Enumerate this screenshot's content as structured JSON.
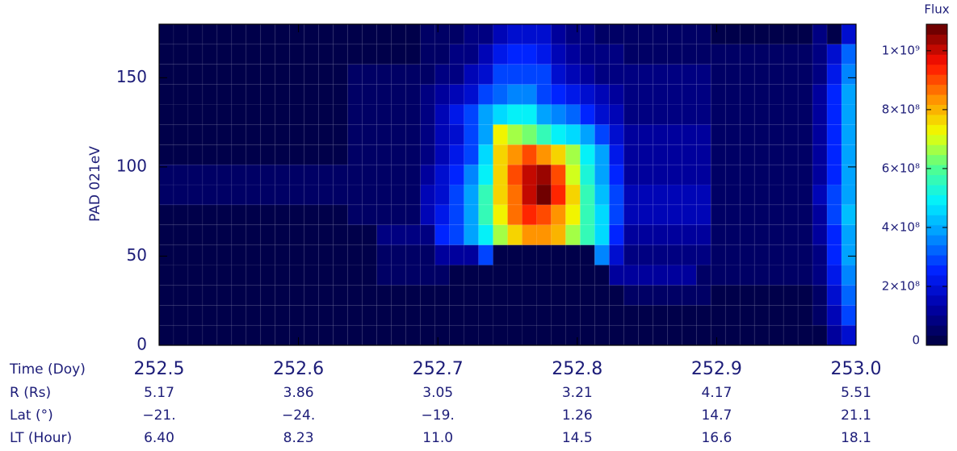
{
  "chart_data": {
    "type": "heatmap",
    "ylabel": "PAD 021eV",
    "xlabel": "Time (Doy)",
    "xlim": [
      252.5,
      253.0
    ],
    "xticks": [
      252.5,
      252.6,
      252.7,
      252.8,
      252.9,
      {
        "value": 253,
        "label": "253.0"
      }
    ],
    "ylim": [
      0,
      180
    ],
    "yticks": [
      0,
      50,
      100,
      150
    ],
    "colorbar": {
      "label": "Flux",
      "lim": [
        0,
        1090000000.0
      ],
      "ticks": [
        0,
        {
          "value": 200000000.0,
          "label": "2×10⁸"
        },
        {
          "value": 400000000.0,
          "label": "4×10⁸"
        },
        {
          "value": 600000000.0,
          "label": "6×10⁸"
        },
        {
          "value": 800000000.0,
          "label": "8×10⁸"
        },
        {
          "value": 1000000000.0,
          "label": "1×10⁹"
        }
      ],
      "colormap": [
        "#00004a",
        "#0000a8",
        "#0020ff",
        "#0090ff",
        "#00f0ff",
        "#50ff90",
        "#f0ff00",
        "#ff9000",
        "#ff1000",
        "#700000"
      ]
    },
    "ephemeris": [
      {
        "label": "R (Rs)",
        "values": [
          "5.17",
          "3.86",
          "3.05",
          "3.21",
          "4.17",
          "5.51"
        ]
      },
      {
        "label": "Lat (°)",
        "values": [
          "−21.",
          "−24.",
          "−19.",
          "1.26",
          "14.7",
          "21.1"
        ]
      },
      {
        "label": "LT (Hour)",
        "values": [
          "6.40",
          "8.23",
          "11.0",
          "14.5",
          "16.6",
          "18.1"
        ]
      }
    ],
    "z": [
      [
        20000000.0,
        20000000.0,
        20000000.0,
        20000000.0,
        20000000.0,
        20000000.0,
        20000000.0,
        20000000.0,
        20000000.0,
        20000000.0,
        20000000.0,
        20000000.0,
        20000000.0,
        20000000.0,
        20000000.0,
        20000000.0,
        20000000.0,
        20000000.0,
        20000000.0,
        20000000.0,
        20000000.0,
        20000000.0,
        10000000.0,
        10000000.0,
        10000000.0,
        10000000.0,
        10000000.0,
        10000000.0,
        10000000.0,
        10000000.0,
        10000000.0,
        10000000.0,
        10000000.0,
        10000000.0,
        10000000.0,
        10000000.0,
        10000000.0,
        10000000.0,
        10000000.0,
        10000000.0,
        10000000.0,
        20000000.0,
        20000000.0,
        20000000.0,
        20000000.0,
        10000000.0,
        120000000.0,
        180000000.0
      ],
      [
        20000000.0,
        20000000.0,
        20000000.0,
        20000000.0,
        20000000.0,
        20000000.0,
        20000000.0,
        20000000.0,
        20000000.0,
        20000000.0,
        20000000.0,
        20000000.0,
        20000000.0,
        20000000.0,
        20000000.0,
        20000000.0,
        20000000.0,
        20000000.0,
        20000000.0,
        10000000.0,
        10000000.0,
        10000000.0,
        10000000.0,
        10000000.0,
        10000000.0,
        10000000.0,
        10000000.0,
        10000000.0,
        10000000.0,
        10000000.0,
        10000000.0,
        10000000.0,
        10000000.0,
        10000000.0,
        10000000.0,
        10000000.0,
        10000000.0,
        10000000.0,
        10000000.0,
        10000000.0,
        10000000.0,
        30000000.0,
        30000000.0,
        30000000.0,
        30000000.0,
        50000000.0,
        150000000.0,
        300000000.0
      ],
      [
        20000000.0,
        20000000.0,
        20000000.0,
        20000000.0,
        20000000.0,
        20000000.0,
        20000000.0,
        20000000.0,
        20000000.0,
        20000000.0,
        20000000.0,
        20000000.0,
        20000000.0,
        20000000.0,
        20000000.0,
        20000000.0,
        20000000.0,
        20000000.0,
        10000000.0,
        10000000.0,
        10000000.0,
        10000000.0,
        10000000.0,
        10000000.0,
        10000000.0,
        10000000.0,
        10000000.0,
        10000000.0,
        10000000.0,
        10000000.0,
        10000000.0,
        10000000.0,
        60000000.0,
        60000000.0,
        60000000.0,
        60000000.0,
        60000000.0,
        60000000.0,
        30000000.0,
        30000000.0,
        30000000.0,
        30000000.0,
        30000000.0,
        30000000.0,
        30000000.0,
        60000000.0,
        200000000.0,
        330000000.0
      ],
      [
        20000000.0,
        20000000.0,
        20000000.0,
        20000000.0,
        20000000.0,
        20000000.0,
        20000000.0,
        20000000.0,
        20000000.0,
        20000000.0,
        20000000.0,
        20000000.0,
        20000000.0,
        20000000.0,
        20000000.0,
        40000000.0,
        40000000.0,
        40000000.0,
        40000000.0,
        40000000.0,
        10000000.0,
        10000000.0,
        10000000.0,
        10000000.0,
        10000000.0,
        10000000.0,
        10000000.0,
        10000000.0,
        10000000.0,
        10000000.0,
        10000000.0,
        120000000.0,
        120000000.0,
        120000000.0,
        120000000.0,
        120000000.0,
        120000000.0,
        40000000.0,
        40000000.0,
        40000000.0,
        40000000.0,
        40000000.0,
        40000000.0,
        40000000.0,
        40000000.0,
        80000000.0,
        220000000.0,
        350000000.0
      ],
      [
        30000000.0,
        30000000.0,
        30000000.0,
        30000000.0,
        30000000.0,
        30000000.0,
        30000000.0,
        30000000.0,
        30000000.0,
        30000000.0,
        30000000.0,
        30000000.0,
        30000000.0,
        30000000.0,
        30000000.0,
        50000000.0,
        50000000.0,
        50000000.0,
        50000000.0,
        120000000.0,
        120000000.0,
        120000000.0,
        300000000.0,
        10000000.0,
        10000000.0,
        10000000.0,
        10000000.0,
        10000000.0,
        10000000.0,
        10000000.0,
        350000000.0,
        200000000.0,
        100000000.0,
        100000000.0,
        100000000.0,
        100000000.0,
        100000000.0,
        100000000.0,
        40000000.0,
        40000000.0,
        40000000.0,
        40000000.0,
        40000000.0,
        40000000.0,
        40000000.0,
        100000000.0,
        250000000.0,
        380000000.0
      ],
      [
        30000000.0,
        30000000.0,
        30000000.0,
        30000000.0,
        30000000.0,
        30000000.0,
        30000000.0,
        30000000.0,
        30000000.0,
        30000000.0,
        30000000.0,
        30000000.0,
        30000000.0,
        30000000.0,
        30000000.0,
        80000000.0,
        80000000.0,
        80000000.0,
        80000000.0,
        250000000.0,
        300000000.0,
        380000000.0,
        480000000.0,
        650000000.0,
        780000000.0,
        850000000.0,
        820000000.0,
        800000000.0,
        680000000.0,
        550000000.0,
        450000000.0,
        250000000.0,
        120000000.0,
        120000000.0,
        120000000.0,
        120000000.0,
        120000000.0,
        120000000.0,
        50000000.0,
        50000000.0,
        50000000.0,
        50000000.0,
        50000000.0,
        50000000.0,
        50000000.0,
        120000000.0,
        250000000.0,
        400000000.0
      ],
      [
        30000000.0,
        30000000.0,
        30000000.0,
        30000000.0,
        30000000.0,
        30000000.0,
        30000000.0,
        30000000.0,
        30000000.0,
        30000000.0,
        30000000.0,
        30000000.0,
        30000000.0,
        60000000.0,
        60000000.0,
        60000000.0,
        60000000.0,
        60000000.0,
        150000000.0,
        220000000.0,
        300000000.0,
        400000000.0,
        550000000.0,
        720000000.0,
        880000000.0,
        920000000.0,
        900000000.0,
        850000000.0,
        720000000.0,
        550000000.0,
        450000000.0,
        300000000.0,
        150000000.0,
        150000000.0,
        150000000.0,
        150000000.0,
        150000000.0,
        150000000.0,
        60000000.0,
        60000000.0,
        60000000.0,
        60000000.0,
        60000000.0,
        60000000.0,
        60000000.0,
        120000000.0,
        280000000.0,
        420000000.0
      ],
      [
        40000000.0,
        40000000.0,
        40000000.0,
        40000000.0,
        40000000.0,
        40000000.0,
        40000000.0,
        40000000.0,
        40000000.0,
        40000000.0,
        40000000.0,
        40000000.0,
        40000000.0,
        60000000.0,
        60000000.0,
        60000000.0,
        60000000.0,
        60000000.0,
        140000000.0,
        200000000.0,
        300000000.0,
        380000000.0,
        550000000.0,
        750000000.0,
        880000000.0,
        1000000000.0,
        1060000000.0,
        950000000.0,
        750000000.0,
        550000000.0,
        420000000.0,
        280000000.0,
        140000000.0,
        140000000.0,
        140000000.0,
        140000000.0,
        140000000.0,
        140000000.0,
        50000000.0,
        50000000.0,
        50000000.0,
        50000000.0,
        50000000.0,
        50000000.0,
        50000000.0,
        140000000.0,
        280000000.0,
        400000000.0
      ],
      [
        40000000.0,
        40000000.0,
        40000000.0,
        40000000.0,
        40000000.0,
        40000000.0,
        40000000.0,
        40000000.0,
        40000000.0,
        40000000.0,
        40000000.0,
        40000000.0,
        40000000.0,
        60000000.0,
        60000000.0,
        60000000.0,
        60000000.0,
        60000000.0,
        120000000.0,
        180000000.0,
        260000000.0,
        350000000.0,
        500000000.0,
        750000000.0,
        900000000.0,
        1020000000.0,
        1040000000.0,
        900000000.0,
        700000000.0,
        520000000.0,
        400000000.0,
        250000000.0,
        130000000.0,
        130000000.0,
        130000000.0,
        130000000.0,
        130000000.0,
        130000000.0,
        50000000.0,
        50000000.0,
        50000000.0,
        50000000.0,
        50000000.0,
        50000000.0,
        50000000.0,
        130000000.0,
        270000000.0,
        400000000.0
      ],
      [
        30000000.0,
        30000000.0,
        30000000.0,
        30000000.0,
        30000000.0,
        30000000.0,
        30000000.0,
        30000000.0,
        30000000.0,
        30000000.0,
        30000000.0,
        30000000.0,
        30000000.0,
        50000000.0,
        50000000.0,
        50000000.0,
        50000000.0,
        50000000.0,
        100000000.0,
        150000000.0,
        220000000.0,
        300000000.0,
        450000000.0,
        750000000.0,
        850000000.0,
        900000000.0,
        850000000.0,
        780000000.0,
        650000000.0,
        500000000.0,
        380000000.0,
        220000000.0,
        120000000.0,
        120000000.0,
        120000000.0,
        120000000.0,
        120000000.0,
        120000000.0,
        50000000.0,
        50000000.0,
        50000000.0,
        50000000.0,
        50000000.0,
        50000000.0,
        50000000.0,
        120000000.0,
        260000000.0,
        400000000.0
      ],
      [
        30000000.0,
        30000000.0,
        30000000.0,
        30000000.0,
        30000000.0,
        30000000.0,
        30000000.0,
        30000000.0,
        30000000.0,
        30000000.0,
        30000000.0,
        30000000.0,
        30000000.0,
        50000000.0,
        50000000.0,
        50000000.0,
        50000000.0,
        50000000.0,
        90000000.0,
        140000000.0,
        200000000.0,
        280000000.0,
        400000000.0,
        720000000.0,
        650000000.0,
        620000000.0,
        550000000.0,
        500000000.0,
        450000000.0,
        400000000.0,
        300000000.0,
        200000000.0,
        110000000.0,
        110000000.0,
        110000000.0,
        110000000.0,
        110000000.0,
        110000000.0,
        50000000.0,
        50000000.0,
        50000000.0,
        50000000.0,
        50000000.0,
        50000000.0,
        50000000.0,
        120000000.0,
        260000000.0,
        380000000.0
      ],
      [
        30000000.0,
        30000000.0,
        30000000.0,
        30000000.0,
        30000000.0,
        30000000.0,
        30000000.0,
        30000000.0,
        30000000.0,
        30000000.0,
        30000000.0,
        30000000.0,
        30000000.0,
        40000000.0,
        40000000.0,
        40000000.0,
        40000000.0,
        40000000.0,
        80000000.0,
        140000000.0,
        220000000.0,
        300000000.0,
        380000000.0,
        450000000.0,
        480000000.0,
        480000000.0,
        400000000.0,
        350000000.0,
        320000000.0,
        250000000.0,
        200000000.0,
        150000000.0,
        100000000.0,
        100000000.0,
        100000000.0,
        100000000.0,
        100000000.0,
        100000000.0,
        50000000.0,
        50000000.0,
        50000000.0,
        50000000.0,
        50000000.0,
        50000000.0,
        50000000.0,
        120000000.0,
        250000000.0,
        380000000.0
      ],
      [
        30000000.0,
        30000000.0,
        30000000.0,
        30000000.0,
        30000000.0,
        30000000.0,
        30000000.0,
        30000000.0,
        30000000.0,
        30000000.0,
        30000000.0,
        30000000.0,
        30000000.0,
        40000000.0,
        40000000.0,
        40000000.0,
        40000000.0,
        40000000.0,
        70000000.0,
        120000000.0,
        150000000.0,
        200000000.0,
        280000000.0,
        320000000.0,
        350000000.0,
        350000000.0,
        300000000.0,
        250000000.0,
        220000000.0,
        180000000.0,
        140000000.0,
        120000000.0,
        90000000.0,
        90000000.0,
        90000000.0,
        90000000.0,
        90000000.0,
        90000000.0,
        50000000.0,
        50000000.0,
        50000000.0,
        50000000.0,
        50000000.0,
        50000000.0,
        50000000.0,
        110000000.0,
        240000000.0,
        380000000.0
      ],
      [
        30000000.0,
        30000000.0,
        30000000.0,
        30000000.0,
        30000000.0,
        30000000.0,
        30000000.0,
        30000000.0,
        30000000.0,
        30000000.0,
        30000000.0,
        30000000.0,
        30000000.0,
        40000000.0,
        40000000.0,
        40000000.0,
        40000000.0,
        40000000.0,
        60000000.0,
        80000000.0,
        100000000.0,
        140000000.0,
        200000000.0,
        280000000.0,
        300000000.0,
        300000000.0,
        280000000.0,
        200000000.0,
        150000000.0,
        120000000.0,
        100000000.0,
        90000000.0,
        70000000.0,
        70000000.0,
        70000000.0,
        70000000.0,
        70000000.0,
        70000000.0,
        50000000.0,
        50000000.0,
        50000000.0,
        50000000.0,
        50000000.0,
        50000000.0,
        50000000.0,
        100000000.0,
        220000000.0,
        360000000.0
      ],
      [
        20000000.0,
        20000000.0,
        20000000.0,
        20000000.0,
        20000000.0,
        20000000.0,
        20000000.0,
        20000000.0,
        20000000.0,
        20000000.0,
        20000000.0,
        20000000.0,
        20000000.0,
        30000000.0,
        30000000.0,
        30000000.0,
        30000000.0,
        30000000.0,
        50000000.0,
        60000000.0,
        80000000.0,
        100000000.0,
        140000000.0,
        220000000.0,
        250000000.0,
        250000000.0,
        220000000.0,
        160000000.0,
        120000000.0,
        100000000.0,
        80000000.0,
        70000000.0,
        60000000.0,
        60000000.0,
        60000000.0,
        60000000.0,
        60000000.0,
        60000000.0,
        40000000.0,
        40000000.0,
        40000000.0,
        40000000.0,
        40000000.0,
        40000000.0,
        40000000.0,
        90000000.0,
        200000000.0,
        340000000.0
      ],
      [
        20000000.0,
        20000000.0,
        20000000.0,
        20000000.0,
        20000000.0,
        20000000.0,
        20000000.0,
        20000000.0,
        20000000.0,
        20000000.0,
        20000000.0,
        20000000.0,
        20000000.0,
        30000000.0,
        30000000.0,
        30000000.0,
        30000000.0,
        30000000.0,
        40000000.0,
        50000000.0,
        60000000.0,
        80000000.0,
        100000000.0,
        150000000.0,
        180000000.0,
        200000000.0,
        180000000.0,
        120000000.0,
        90000000.0,
        70000000.0,
        60000000.0,
        50000000.0,
        50000000.0,
        50000000.0,
        50000000.0,
        50000000.0,
        50000000.0,
        50000000.0,
        30000000.0,
        30000000.0,
        30000000.0,
        30000000.0,
        30000000.0,
        30000000.0,
        30000000.0,
        80000000.0,
        10000000.0,
        200000000.0
      ]
    ]
  }
}
